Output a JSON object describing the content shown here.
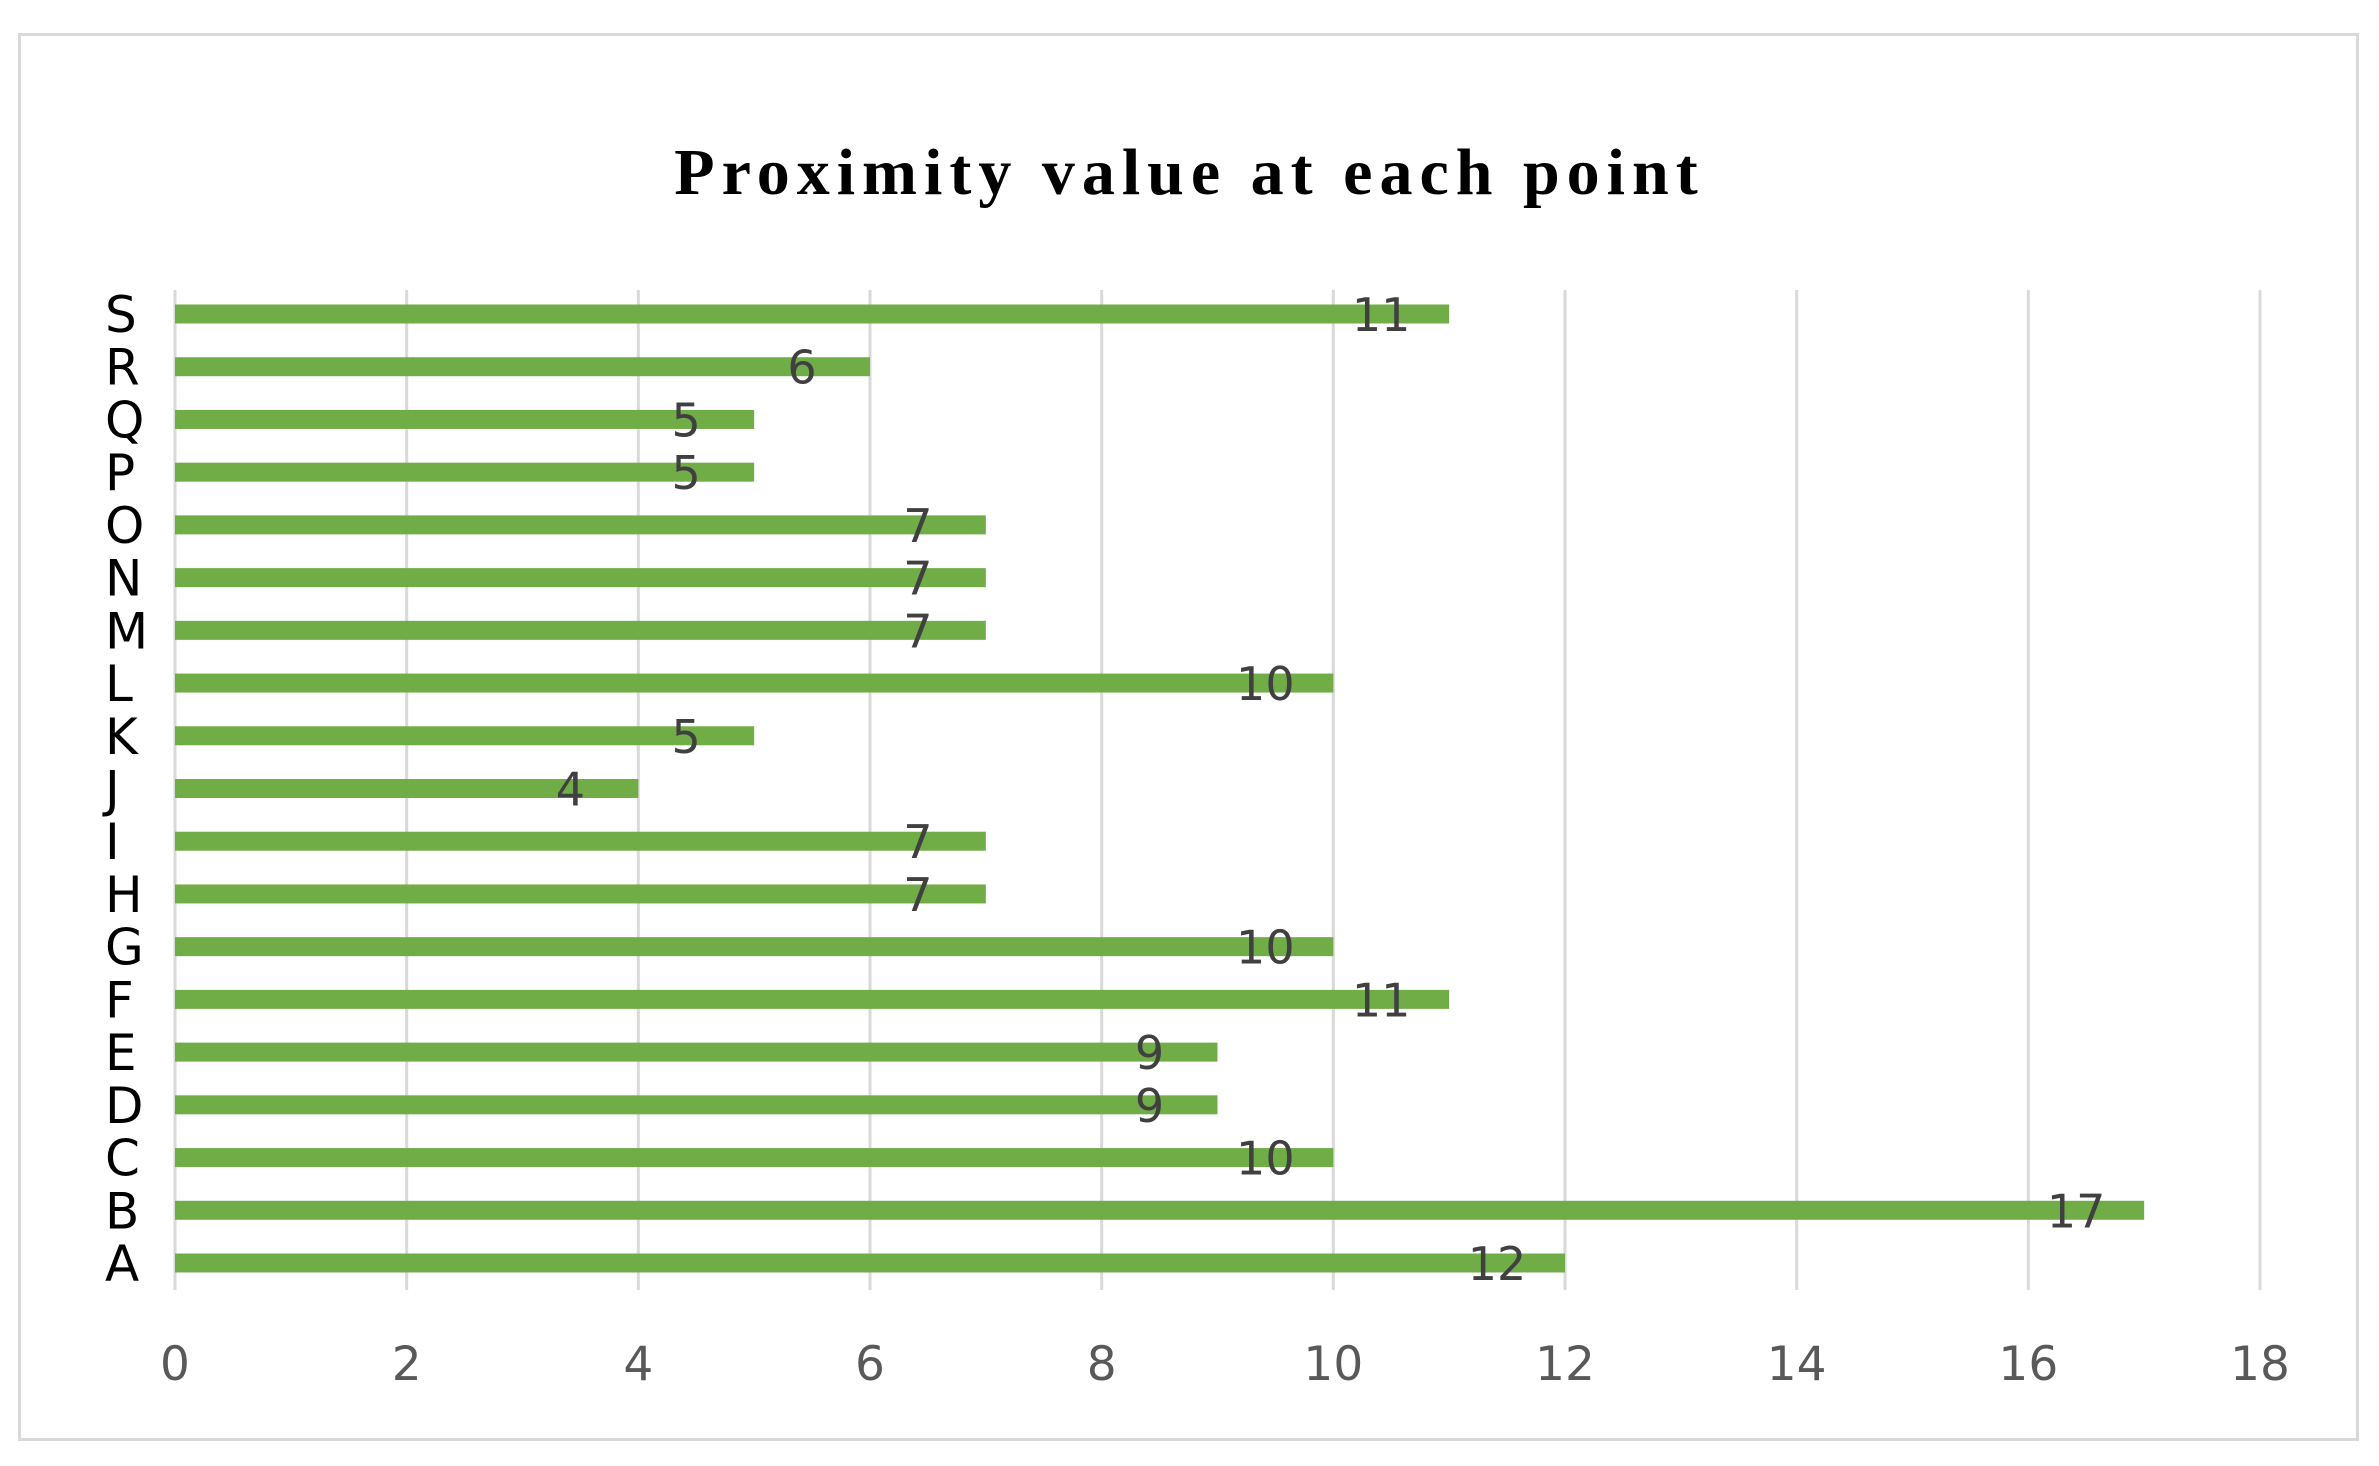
{
  "chart_data": {
    "type": "bar",
    "orientation": "horizontal",
    "title": "Proximity value at each point",
    "xlabel": "",
    "ylabel": "",
    "categories": [
      "A",
      "B",
      "C",
      "D",
      "E",
      "F",
      "G",
      "H",
      "I",
      "J",
      "K",
      "L",
      "M",
      "N",
      "O",
      "P",
      "Q",
      "R",
      "S"
    ],
    "values": [
      12,
      17,
      10,
      9,
      9,
      11,
      10,
      7,
      7,
      4,
      5,
      10,
      7,
      7,
      7,
      5,
      5,
      6,
      11
    ],
    "xlim": [
      0,
      18
    ],
    "x_ticks": [
      "0",
      "2",
      "4",
      "6",
      "8",
      "10",
      "12",
      "14",
      "16",
      "18"
    ],
    "grid": "vertical",
    "legend": "none",
    "bar_color": "#70ad47",
    "gridline_color": "#d9d9d9",
    "data_labels": true
  }
}
